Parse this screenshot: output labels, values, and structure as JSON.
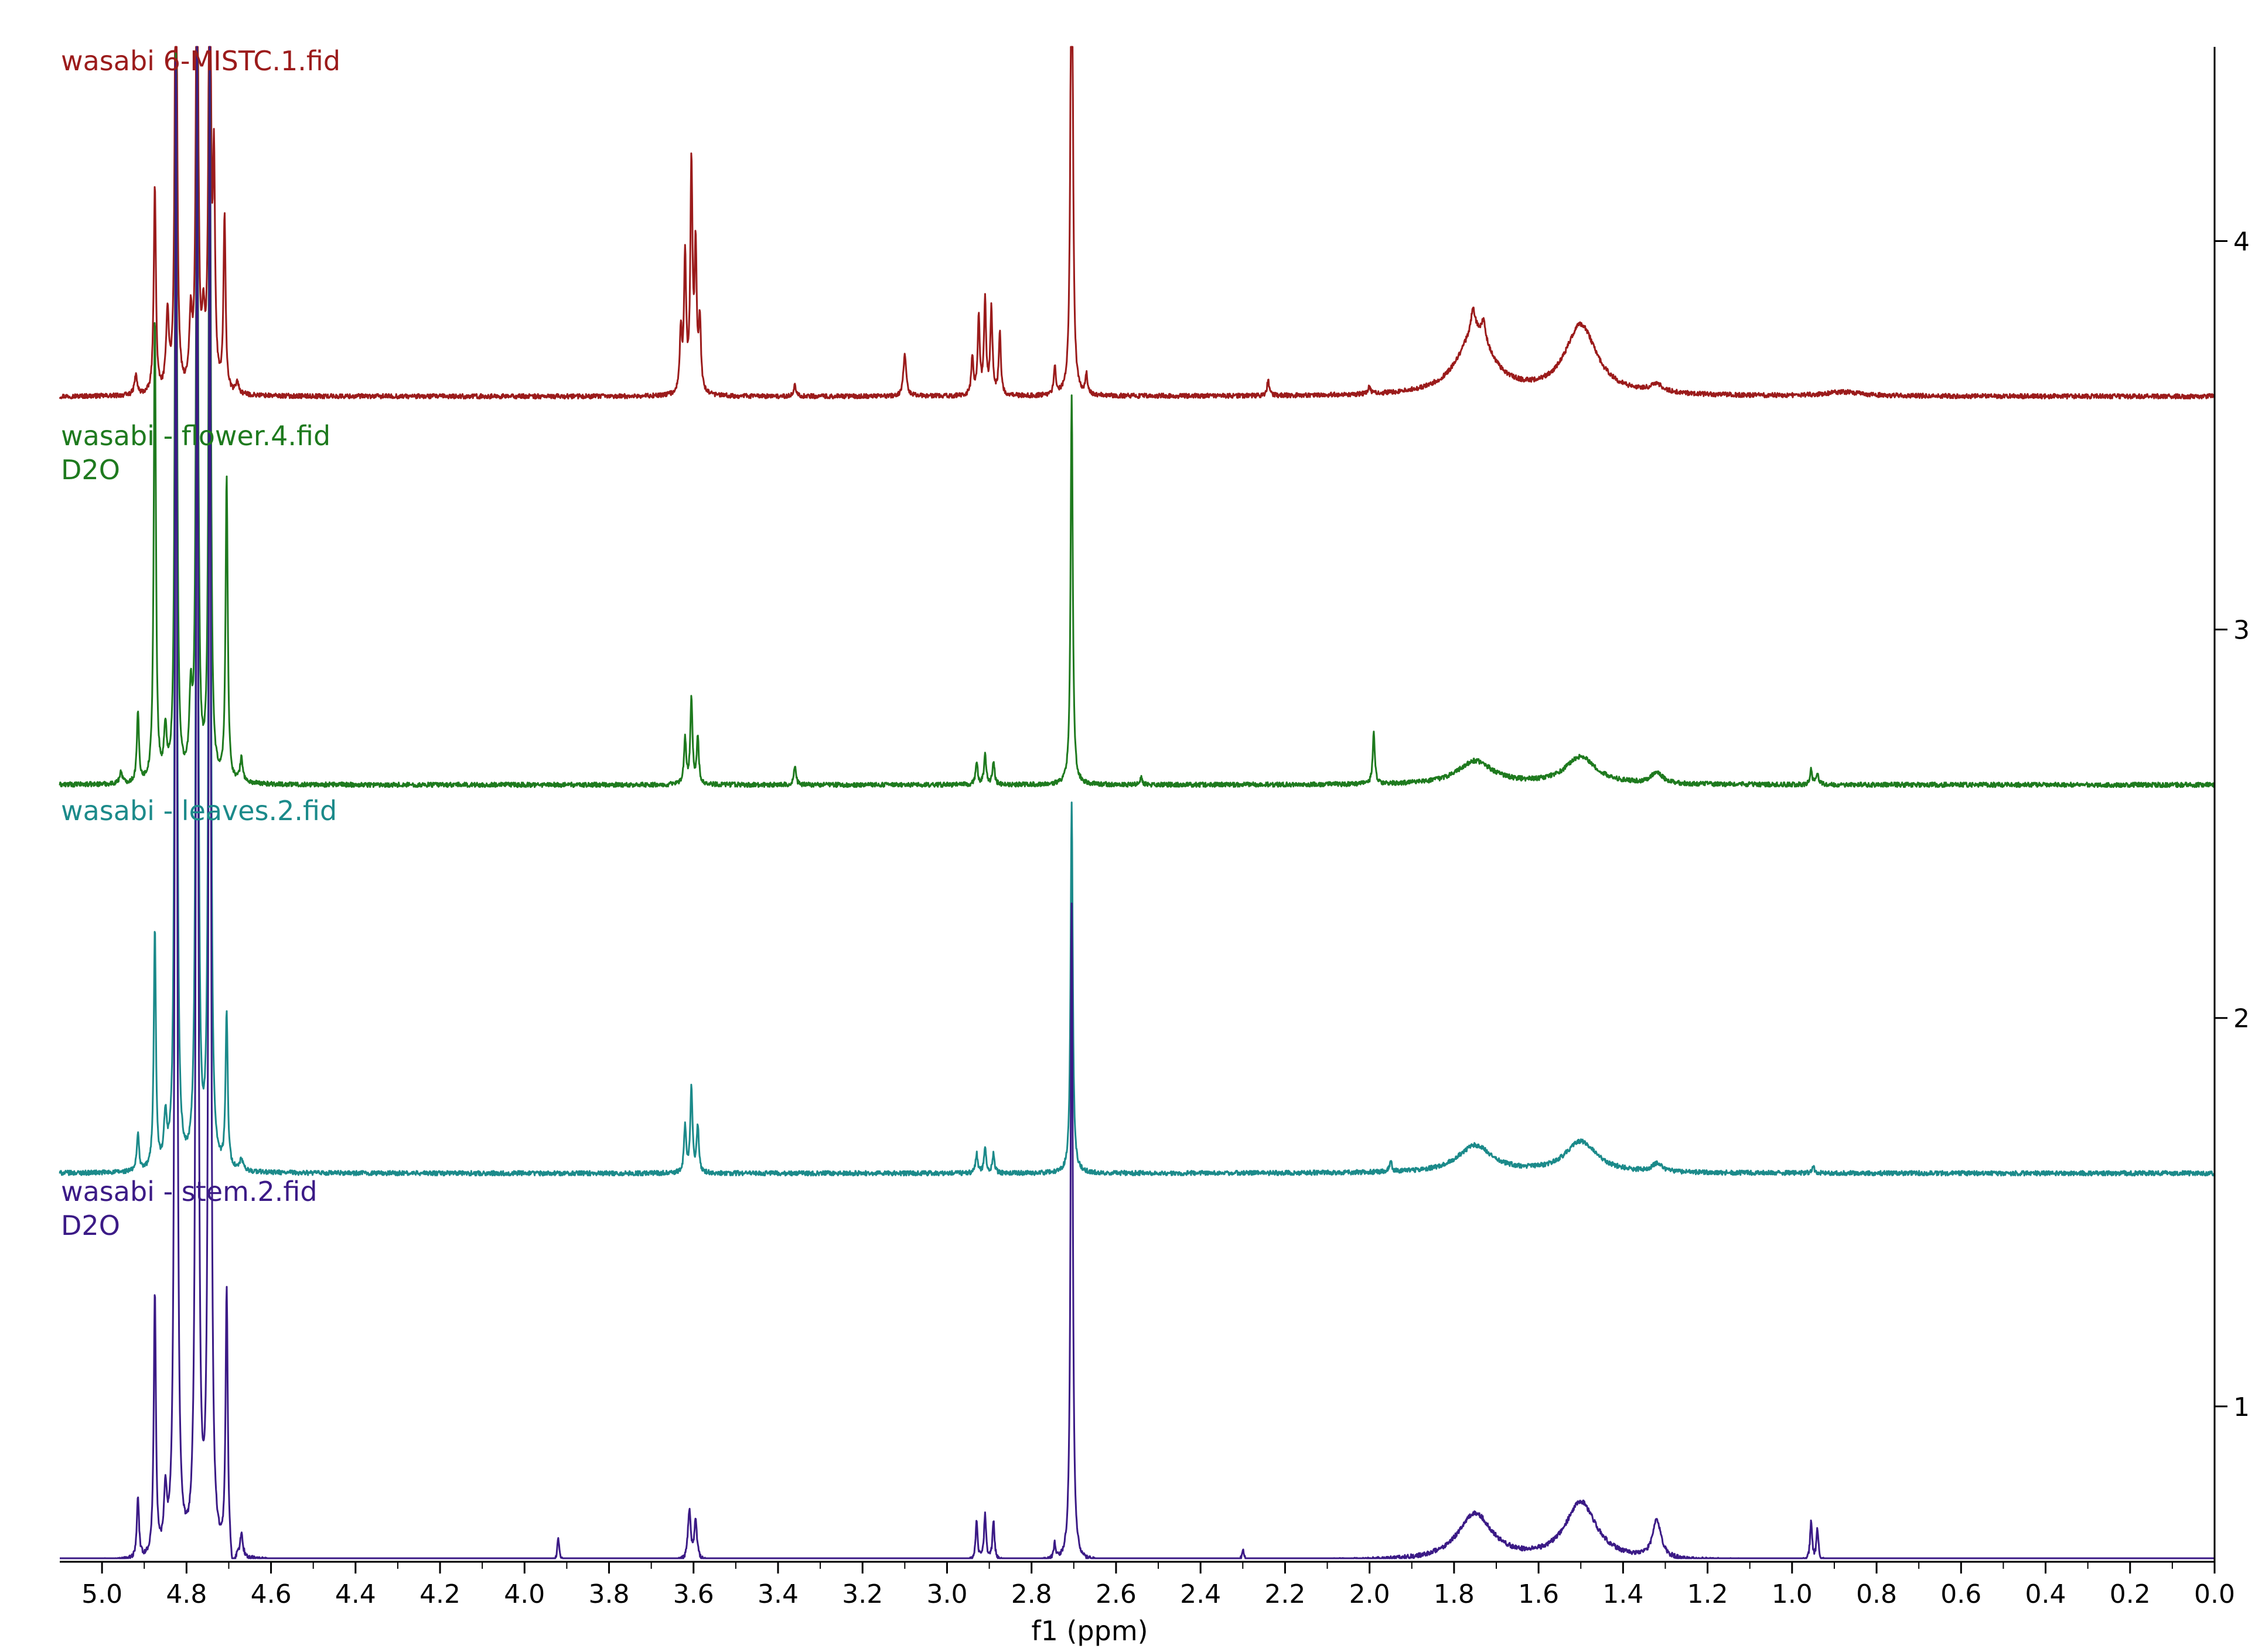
{
  "chart_data": {
    "type": "line",
    "title": "",
    "xlabel": "f1 (ppm)",
    "ylabel": "",
    "xlim": [
      5.1,
      0.0
    ],
    "ylim": [
      0.6,
      4.5
    ],
    "x_ticks": [
      "5.0",
      "4.8",
      "4.6",
      "4.4",
      "4.2",
      "4.0",
      "3.8",
      "3.6",
      "3.4",
      "3.2",
      "3.0",
      "2.8",
      "2.6",
      "2.4",
      "2.2",
      "2.0",
      "1.8",
      "1.6",
      "1.4",
      "1.2",
      "1.0",
      "0.8",
      "0.6",
      "0.4",
      "0.2",
      "0.0"
    ],
    "y_ticks": [
      "1",
      "2",
      "3",
      "4"
    ],
    "grid": false,
    "legend": "labels at top-left of each trace",
    "series": [
      {
        "name": "wasabi 6-MISTC.1.fid",
        "label_lines": [
          "wasabi 6-MISTC.1.fid"
        ],
        "color": "#9b1b1b",
        "baseline": 3.6,
        "peaks": [
          {
            "x": 4.92,
            "h": 0.05,
            "w": 0.004
          },
          {
            "x": 4.875,
            "h": 0.54,
            "w": 0.003
          },
          {
            "x": 4.845,
            "h": 0.2,
            "w": 0.004
          },
          {
            "x": 4.825,
            "h": 1.4,
            "w": 0.003
          },
          {
            "x": 4.79,
            "h": 0.18,
            "w": 0.004
          },
          {
            "x": 4.775,
            "h": 1.4,
            "w": 0.003
          },
          {
            "x": 4.76,
            "h": 0.15,
            "w": 0.004
          },
          {
            "x": 4.745,
            "h": 1.4,
            "w": 0.003
          },
          {
            "x": 4.735,
            "h": 0.55,
            "w": 0.003
          },
          {
            "x": 4.71,
            "h": 0.45,
            "w": 0.003
          },
          {
            "x": 4.68,
            "h": 0.03,
            "w": 0.004
          },
          {
            "x": 3.63,
            "h": 0.16,
            "w": 0.003
          },
          {
            "x": 3.62,
            "h": 0.35,
            "w": 0.003
          },
          {
            "x": 3.605,
            "h": 0.58,
            "w": 0.003
          },
          {
            "x": 3.595,
            "h": 0.36,
            "w": 0.003
          },
          {
            "x": 3.585,
            "h": 0.18,
            "w": 0.003
          },
          {
            "x": 3.36,
            "h": 0.03,
            "w": 0.003
          },
          {
            "x": 3.1,
            "h": 0.11,
            "w": 0.004
          },
          {
            "x": 2.94,
            "h": 0.1,
            "w": 0.003
          },
          {
            "x": 2.925,
            "h": 0.2,
            "w": 0.003
          },
          {
            "x": 2.91,
            "h": 0.24,
            "w": 0.003
          },
          {
            "x": 2.895,
            "h": 0.22,
            "w": 0.003
          },
          {
            "x": 2.875,
            "h": 0.16,
            "w": 0.003
          },
          {
            "x": 2.745,
            "h": 0.07,
            "w": 0.003
          },
          {
            "x": 2.705,
            "h": 1.5,
            "w": 0.003
          },
          {
            "x": 2.67,
            "h": 0.05,
            "w": 0.003
          },
          {
            "x": 2.24,
            "h": 0.04,
            "w": 0.003
          },
          {
            "x": 2.0,
            "h": 0.02,
            "w": 0.003
          },
          {
            "x": 1.75,
            "h": 0.16,
            "w": 0.05
          },
          {
            "x": 1.755,
            "h": 0.06,
            "w": 0.006
          },
          {
            "x": 1.73,
            "h": 0.05,
            "w": 0.006
          },
          {
            "x": 1.5,
            "h": 0.18,
            "w": 0.045
          },
          {
            "x": 1.32,
            "h": 0.02,
            "w": 0.02
          },
          {
            "x": 0.88,
            "h": 0.01,
            "w": 0.05
          }
        ]
      },
      {
        "name": "wasabi - flower.4.fid",
        "label_lines": [
          "wasabi - flower.4.fid",
          "D2O"
        ],
        "color": "#1e7a1e",
        "baseline": 2.6,
        "peaks": [
          {
            "x": 4.955,
            "h": 0.03,
            "w": 0.004
          },
          {
            "x": 4.915,
            "h": 0.18,
            "w": 0.003
          },
          {
            "x": 4.875,
            "h": 1.2,
            "w": 0.003
          },
          {
            "x": 4.85,
            "h": 0.12,
            "w": 0.004
          },
          {
            "x": 4.825,
            "h": 1.9,
            "w": 0.003
          },
          {
            "x": 4.79,
            "h": 0.2,
            "w": 0.004
          },
          {
            "x": 4.775,
            "h": 1.9,
            "w": 0.003
          },
          {
            "x": 4.745,
            "h": 1.9,
            "w": 0.003
          },
          {
            "x": 4.705,
            "h": 0.78,
            "w": 0.003
          },
          {
            "x": 4.67,
            "h": 0.06,
            "w": 0.004
          },
          {
            "x": 3.62,
            "h": 0.12,
            "w": 0.003
          },
          {
            "x": 3.605,
            "h": 0.22,
            "w": 0.003
          },
          {
            "x": 3.59,
            "h": 0.12,
            "w": 0.003
          },
          {
            "x": 3.36,
            "h": 0.05,
            "w": 0.003
          },
          {
            "x": 2.93,
            "h": 0.06,
            "w": 0.003
          },
          {
            "x": 2.91,
            "h": 0.08,
            "w": 0.003
          },
          {
            "x": 2.89,
            "h": 0.06,
            "w": 0.003
          },
          {
            "x": 2.705,
            "h": 1.0,
            "w": 0.003
          },
          {
            "x": 2.54,
            "h": 0.02,
            "w": 0.003
          },
          {
            "x": 1.99,
            "h": 0.13,
            "w": 0.003
          },
          {
            "x": 1.75,
            "h": 0.06,
            "w": 0.05
          },
          {
            "x": 1.5,
            "h": 0.07,
            "w": 0.045
          },
          {
            "x": 1.32,
            "h": 0.03,
            "w": 0.015
          },
          {
            "x": 0.955,
            "h": 0.04,
            "w": 0.003
          },
          {
            "x": 0.94,
            "h": 0.03,
            "w": 0.003
          }
        ]
      },
      {
        "name": "wasabi - leaves.2.fid",
        "label_lines": [
          "wasabi - leaves.2.fid"
        ],
        "color": "#1b8a8a",
        "baseline": 1.6,
        "peaks": [
          {
            "x": 4.915,
            "h": 0.1,
            "w": 0.003
          },
          {
            "x": 4.875,
            "h": 0.62,
            "w": 0.003
          },
          {
            "x": 4.85,
            "h": 0.12,
            "w": 0.004
          },
          {
            "x": 4.825,
            "h": 2.8,
            "w": 0.003
          },
          {
            "x": 4.775,
            "h": 2.8,
            "w": 0.003
          },
          {
            "x": 4.745,
            "h": 2.8,
            "w": 0.003
          },
          {
            "x": 4.705,
            "h": 0.4,
            "w": 0.003
          },
          {
            "x": 4.67,
            "h": 0.03,
            "w": 0.004
          },
          {
            "x": 3.62,
            "h": 0.12,
            "w": 0.003
          },
          {
            "x": 3.605,
            "h": 0.22,
            "w": 0.003
          },
          {
            "x": 3.59,
            "h": 0.12,
            "w": 0.003
          },
          {
            "x": 2.93,
            "h": 0.05,
            "w": 0.003
          },
          {
            "x": 2.91,
            "h": 0.07,
            "w": 0.003
          },
          {
            "x": 2.89,
            "h": 0.05,
            "w": 0.003
          },
          {
            "x": 2.705,
            "h": 0.95,
            "w": 0.003
          },
          {
            "x": 1.95,
            "h": 0.03,
            "w": 0.003
          },
          {
            "x": 1.75,
            "h": 0.07,
            "w": 0.05
          },
          {
            "x": 1.5,
            "h": 0.08,
            "w": 0.045
          },
          {
            "x": 1.32,
            "h": 0.02,
            "w": 0.015
          },
          {
            "x": 0.95,
            "h": 0.02,
            "w": 0.003
          }
        ]
      },
      {
        "name": "wasabi - stem.2.fid",
        "label_lines": [
          "wasabi - stem.2.fid",
          "D2O"
        ],
        "color": "#3b1a86",
        "baseline": 0.6,
        "peaks": [
          {
            "x": 4.915,
            "h": 0.16,
            "w": 0.003
          },
          {
            "x": 4.875,
            "h": 0.68,
            "w": 0.003
          },
          {
            "x": 4.85,
            "h": 0.15,
            "w": 0.004
          },
          {
            "x": 4.825,
            "h": 3.9,
            "w": 0.003
          },
          {
            "x": 4.775,
            "h": 3.9,
            "w": 0.003
          },
          {
            "x": 4.745,
            "h": 3.9,
            "w": 0.003
          },
          {
            "x": 4.705,
            "h": 0.68,
            "w": 0.003
          },
          {
            "x": 4.67,
            "h": 0.06,
            "w": 0.004
          },
          {
            "x": 4.69,
            "h": -0.1,
            "w": 0.003
          },
          {
            "x": 3.92,
            "h": 0.06,
            "w": 0.003
          },
          {
            "x": 3.61,
            "h": 0.13,
            "w": 0.004
          },
          {
            "x": 3.595,
            "h": 0.1,
            "w": 0.004
          },
          {
            "x": 2.93,
            "h": 0.1,
            "w": 0.003
          },
          {
            "x": 2.91,
            "h": 0.12,
            "w": 0.003
          },
          {
            "x": 2.89,
            "h": 0.1,
            "w": 0.003
          },
          {
            "x": 2.745,
            "h": 0.04,
            "w": 0.003
          },
          {
            "x": 2.705,
            "h": 1.7,
            "w": 0.003
          },
          {
            "x": 2.3,
            "h": 0.03,
            "w": 0.003
          },
          {
            "x": 1.75,
            "h": 0.12,
            "w": 0.05
          },
          {
            "x": 1.5,
            "h": 0.15,
            "w": 0.045
          },
          {
            "x": 1.32,
            "h": 0.1,
            "w": 0.012
          },
          {
            "x": 0.955,
            "h": 0.1,
            "w": 0.003
          },
          {
            "x": 0.94,
            "h": 0.08,
            "w": 0.003
          }
        ]
      }
    ]
  }
}
